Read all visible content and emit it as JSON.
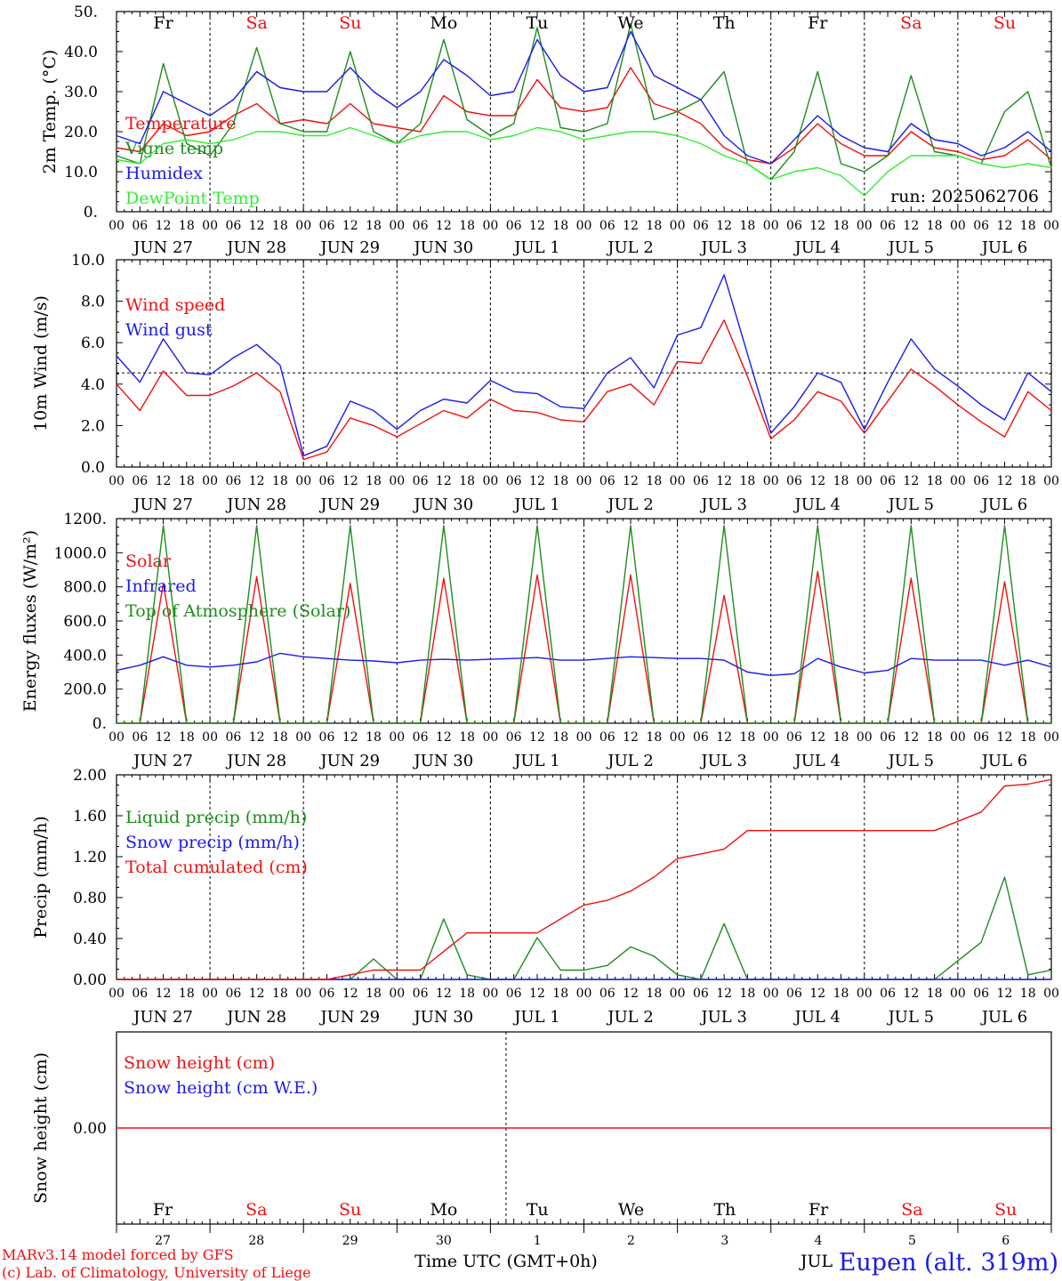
{
  "colors": {
    "red": "#ee1111",
    "blue": "#1a1aee",
    "darkgreen": "#1e8c1e",
    "lightgreen": "#33ee33",
    "axis": "#000000"
  },
  "days": [
    "Fr",
    "Sa",
    "Su",
    "Mo",
    "Tu",
    "We",
    "Th",
    "Fr",
    "Sa",
    "Su"
  ],
  "weekend_days": [
    "Sa",
    "Su"
  ],
  "dates": [
    "JUN 27",
    "JUN 28",
    "JUN 29",
    "JUN 30",
    "JUL  1",
    "JUL  2",
    "JUL  3",
    "JUL  4",
    "JUL  5",
    "JUL  6"
  ],
  "day_numbers": [
    "27",
    "28",
    "29",
    "30",
    "1",
    "2",
    "3",
    "4",
    "5",
    "6"
  ],
  "hour_labels": [
    "00",
    "06",
    "12",
    "18"
  ],
  "run_label": "run: 2025062706",
  "xaxis_title": "Time UTC (GMT+0h)",
  "month_label": "JUL",
  "footer": {
    "model": "MARv3.14 model forced by GFS",
    "lab": "(c) Lab. of Climatology, University of Liege",
    "station": "Eupen (alt. 319m)"
  },
  "chart_data": [
    {
      "type": "line",
      "ylabel": "2m Temp. (°C)",
      "ylim": [
        0,
        50
      ],
      "yticks": [
        "0.",
        "10.0",
        "20.0",
        "30.0",
        "40.0",
        "50."
      ],
      "x_hours": [
        0,
        6,
        12,
        18,
        24,
        30,
        36,
        42,
        48,
        54,
        60,
        66,
        72,
        78,
        84,
        90,
        96,
        102,
        108,
        114,
        120,
        126,
        132,
        138,
        144,
        150,
        156,
        162,
        168,
        174,
        180,
        186,
        192,
        198,
        204,
        210,
        216,
        222,
        228,
        234,
        240
      ],
      "series": [
        {
          "name": "Temperature",
          "color": "red",
          "values": [
            16,
            15,
            22,
            19,
            20,
            24,
            27,
            22,
            23,
            22,
            27,
            22,
            21,
            20,
            29,
            25,
            24,
            24,
            33,
            26,
            25,
            26,
            36,
            27,
            25,
            22,
            16,
            13,
            12,
            16,
            22,
            17,
            14,
            14,
            20,
            16,
            15,
            13,
            14,
            18,
            13
          ]
        },
        {
          "name": "Vigne temp",
          "color": "darkgreen",
          "values": [
            14,
            12,
            37,
            17,
            14,
            22,
            41,
            22,
            20,
            20,
            40,
            20,
            17,
            22,
            43,
            23,
            19,
            22,
            46,
            21,
            20,
            22,
            47,
            23,
            25,
            28,
            35,
            12,
            8,
            15,
            35,
            12,
            10,
            14,
            34,
            15,
            14,
            12,
            25,
            30,
            11
          ]
        },
        {
          "name": "Humidex",
          "color": "blue",
          "values": [
            19,
            17,
            30,
            27,
            24,
            28,
            35,
            31,
            30,
            30,
            36,
            30,
            26,
            30,
            38,
            34,
            29,
            30,
            43,
            34,
            30,
            31,
            45,
            34,
            31,
            28,
            19,
            14,
            12,
            18,
            24,
            19,
            16,
            15,
            22,
            18,
            17,
            14,
            16,
            20,
            15
          ]
        },
        {
          "name": "DewPoint Temp",
          "color": "lightgreen",
          "values": [
            13,
            12,
            17,
            18,
            17,
            18,
            20,
            20,
            19,
            19,
            21,
            19,
            17,
            19,
            20,
            20,
            18,
            19,
            21,
            20,
            18,
            19,
            20,
            20,
            19,
            17,
            14,
            12,
            8,
            10,
            11,
            9,
            4,
            10,
            14,
            14,
            14,
            12,
            11,
            12,
            11
          ]
        }
      ]
    },
    {
      "type": "line",
      "ylabel": "10m Wind (m/s)",
      "ylim": [
        0,
        11
      ],
      "yticks": [
        "0.0",
        "2.0",
        "4.0",
        "6.0",
        "8.0",
        "10.0"
      ],
      "ref_line": 5,
      "x_hours": [
        0,
        6,
        12,
        18,
        24,
        30,
        36,
        42,
        48,
        54,
        60,
        66,
        72,
        78,
        84,
        90,
        96,
        102,
        108,
        114,
        120,
        126,
        132,
        138,
        144,
        150,
        156,
        162,
        168,
        174,
        180,
        186,
        192,
        198,
        204,
        210,
        216,
        222,
        228,
        234,
        240
      ],
      "series": [
        {
          "name": "Wind speed",
          "color": "red",
          "values": [
            4.4,
            3.0,
            5.1,
            3.8,
            3.8,
            4.3,
            5.0,
            4.0,
            0.4,
            0.8,
            2.6,
            2.2,
            1.6,
            2.3,
            3.0,
            2.6,
            3.6,
            3.0,
            2.9,
            2.5,
            2.4,
            4.0,
            4.4,
            3.3,
            5.6,
            5.5,
            7.8,
            4.8,
            1.5,
            2.5,
            4.0,
            3.5,
            1.8,
            3.5,
            5.2,
            4.3,
            3.3,
            2.4,
            1.6,
            4.0,
            3.0
          ]
        },
        {
          "name": "Wind gust",
          "color": "blue",
          "values": [
            5.9,
            4.5,
            6.8,
            5.0,
            4.9,
            5.8,
            6.5,
            5.4,
            0.6,
            1.1,
            3.5,
            3.0,
            2.0,
            3.0,
            3.6,
            3.4,
            4.6,
            4.0,
            3.9,
            3.2,
            3.1,
            5.0,
            5.8,
            4.2,
            7.0,
            7.4,
            10.2,
            6.0,
            1.8,
            3.2,
            5.0,
            4.5,
            2.0,
            4.5,
            6.8,
            5.2,
            4.3,
            3.3,
            2.5,
            5.0,
            4.0
          ]
        }
      ]
    },
    {
      "type": "line",
      "ylabel": "Energy fluxes (W/m²)",
      "ylim": [
        0,
        1200
      ],
      "yticks": [
        "0.",
        "200.0",
        "400.0",
        "600.0",
        "800.0",
        "1000.0",
        "1200."
      ],
      "x_hours": [
        0,
        6,
        12,
        18,
        24,
        30,
        36,
        42,
        48,
        54,
        60,
        66,
        72,
        78,
        84,
        90,
        96,
        102,
        108,
        114,
        120,
        126,
        132,
        138,
        144,
        150,
        156,
        162,
        168,
        174,
        180,
        186,
        192,
        198,
        204,
        210,
        216,
        222,
        228,
        234,
        240
      ],
      "series": [
        {
          "name": "Solar",
          "color": "red",
          "values": [
            0,
            0,
            820,
            0,
            0,
            0,
            860,
            0,
            0,
            0,
            820,
            0,
            0,
            0,
            850,
            0,
            0,
            0,
            870,
            0,
            0,
            0,
            870,
            0,
            0,
            0,
            750,
            0,
            0,
            0,
            890,
            0,
            0,
            0,
            850,
            0,
            0,
            0,
            830,
            0,
            0
          ]
        },
        {
          "name": "Infrared",
          "color": "blue",
          "values": [
            310,
            340,
            390,
            340,
            330,
            340,
            360,
            410,
            390,
            380,
            370,
            365,
            355,
            370,
            375,
            370,
            375,
            380,
            385,
            370,
            370,
            380,
            390,
            385,
            380,
            380,
            370,
            300,
            280,
            290,
            380,
            330,
            295,
            310,
            380,
            370,
            370,
            370,
            340,
            370,
            330
          ]
        },
        {
          "name": "Top of Atmosphere (Solar)",
          "color": "darkgreen",
          "values": [
            0,
            0,
            1160,
            0,
            0,
            0,
            1160,
            0,
            0,
            0,
            1160,
            0,
            0,
            0,
            1160,
            0,
            0,
            0,
            1160,
            0,
            0,
            0,
            1160,
            0,
            0,
            0,
            1160,
            0,
            0,
            0,
            1160,
            0,
            0,
            0,
            1160,
            0,
            0,
            0,
            1160,
            0,
            0
          ]
        }
      ]
    },
    {
      "type": "line",
      "ylabel": "Precip (mm/h)",
      "ylim": [
        0,
        2.2
      ],
      "yticks": [
        "0.00",
        "0.40",
        "0.80",
        "1.20",
        "1.60",
        "2.00"
      ],
      "x_hours": [
        0,
        6,
        12,
        18,
        24,
        30,
        36,
        42,
        48,
        54,
        60,
        66,
        72,
        78,
        84,
        90,
        96,
        102,
        108,
        114,
        120,
        126,
        132,
        138,
        144,
        150,
        156,
        162,
        168,
        174,
        180,
        186,
        192,
        198,
        204,
        210,
        216,
        222,
        228,
        234,
        240
      ],
      "series": [
        {
          "name": "Liquid precip (mm/h)",
          "color": "darkgreen",
          "values": [
            0,
            0,
            0,
            0,
            0,
            0,
            0,
            0,
            0,
            0,
            0,
            0.22,
            0,
            0,
            0.65,
            0.05,
            0,
            0,
            0.45,
            0.1,
            0.1,
            0.15,
            0.35,
            0.25,
            0.05,
            0,
            0.6,
            0,
            0,
            0,
            0,
            0,
            0,
            0,
            0,
            0,
            0.2,
            0.4,
            1.1,
            0.05,
            0.1
          ]
        },
        {
          "name": "Snow precip (mm/h)",
          "color": "blue",
          "values": [
            0,
            0,
            0,
            0,
            0,
            0,
            0,
            0,
            0,
            0,
            0,
            0,
            0,
            0,
            0,
            0,
            0,
            0,
            0,
            0,
            0,
            0,
            0,
            0,
            0,
            0,
            0,
            0,
            0,
            0,
            0,
            0,
            0,
            0,
            0,
            0,
            0,
            0,
            0,
            0,
            0
          ]
        },
        {
          "name": "Total cumulated (cm)",
          "color": "red",
          "values": [
            0,
            0,
            0,
            0,
            0,
            0,
            0,
            0,
            0,
            0,
            0.05,
            0.1,
            0.1,
            0.1,
            0.3,
            0.5,
            0.5,
            0.5,
            0.5,
            0.65,
            0.8,
            0.85,
            0.95,
            1.1,
            1.3,
            1.35,
            1.4,
            1.6,
            1.6,
            1.6,
            1.6,
            1.6,
            1.6,
            1.6,
            1.6,
            1.6,
            1.7,
            1.8,
            2.08,
            2.1,
            2.15
          ]
        }
      ]
    },
    {
      "type": "line",
      "ylabel": "Snow height (cm)",
      "ylim": [
        -1,
        1
      ],
      "yticks": [
        "0.00"
      ],
      "x_hours": [
        0,
        240
      ],
      "series": [
        {
          "name": "Snow height (cm)",
          "color": "red",
          "values": [
            0,
            0
          ]
        },
        {
          "name": "Snow height (cm W.E.)",
          "color": "blue",
          "values": []
        }
      ]
    }
  ]
}
